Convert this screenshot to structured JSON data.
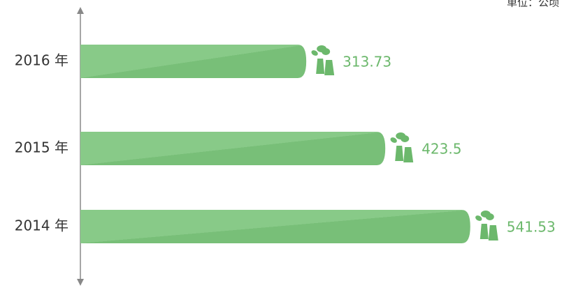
{
  "chart_data": {
    "type": "bar",
    "orientation": "horizontal",
    "unit_label": "单位：公顷",
    "categories": [
      "2016 年",
      "2015 年",
      "2014 年"
    ],
    "values": [
      313.73,
      423.5,
      541.53
    ],
    "color": "#7dc27d",
    "xlim": [
      0,
      600
    ]
  }
}
